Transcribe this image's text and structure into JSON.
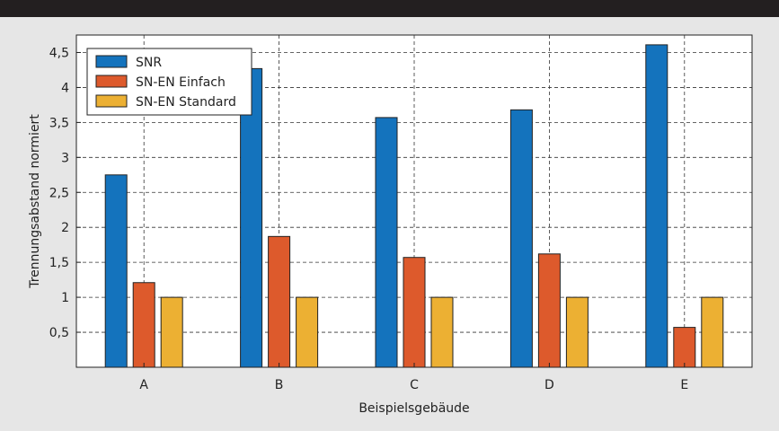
{
  "chart_data": {
    "type": "bar",
    "title": "",
    "xlabel": "Beispielsgebäude",
    "ylabel": "Trennungsabstand normiert",
    "categories": [
      "A",
      "B",
      "C",
      "D",
      "E"
    ],
    "series": [
      {
        "name": "SNR",
        "color": "#1473bd",
        "values": [
          2.75,
          4.27,
          3.57,
          3.68,
          4.61
        ]
      },
      {
        "name": "SN-EN Einfach",
        "color": "#dd5a2c",
        "values": [
          1.21,
          1.87,
          1.57,
          1.62,
          0.57
        ]
      },
      {
        "name": "SN-EN Standard",
        "color": "#ecb033",
        "values": [
          1.0,
          1.0,
          1.0,
          1.0,
          1.0
        ]
      }
    ],
    "yticks": [
      0.5,
      1,
      1.5,
      2,
      2.5,
      3,
      3.5,
      4,
      4.5
    ],
    "ytick_labels": [
      "0,5",
      "1",
      "1,5",
      "2",
      "2,5",
      "3",
      "3,5",
      "4",
      "4,5"
    ],
    "ylim": [
      0,
      4.75
    ],
    "grid": true,
    "legend_position": "top-left"
  }
}
